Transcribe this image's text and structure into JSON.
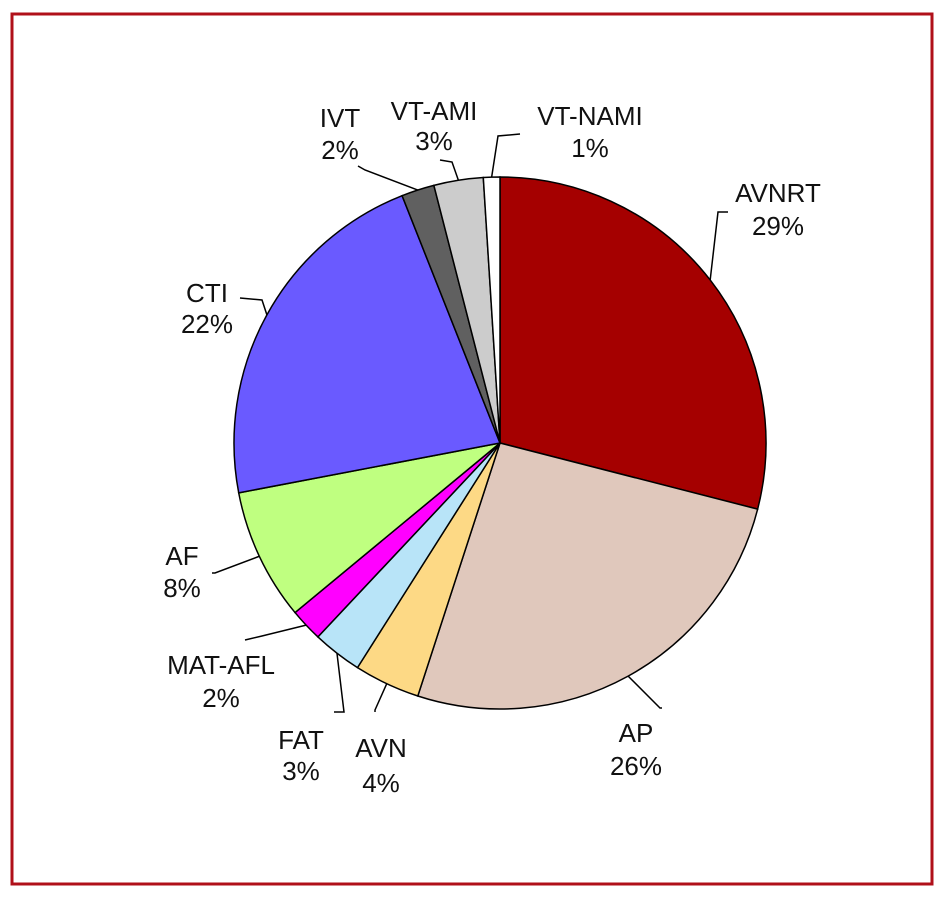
{
  "chart_data": {
    "type": "pie",
    "categories": [
      "AVNRT",
      "AP",
      "AVN",
      "FAT",
      "MAT-AFL",
      "AF",
      "CTI",
      "IVT",
      "VT-AMI",
      "VT-NAMI"
    ],
    "values": [
      29,
      26,
      4,
      3,
      2,
      8,
      22,
      2,
      3,
      1
    ],
    "value_labels": [
      "29%",
      "26%",
      "4%",
      "3%",
      "2%",
      "8%",
      "22%",
      "2%",
      "3%",
      "1%"
    ],
    "colors": [
      "#a50000",
      "#e0c8bc",
      "#fdd985",
      "#b8e4f8",
      "#ff00ff",
      "#bfff80",
      "#6a5aff",
      "#606060",
      "#cccccc",
      "#ffffff"
    ]
  }
}
